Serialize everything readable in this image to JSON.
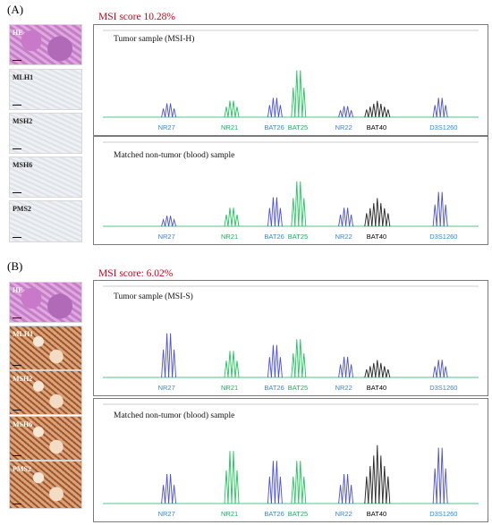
{
  "panels": [
    {
      "letter": "(A)",
      "msi_score": "MSI score 10.28%",
      "stains": [
        {
          "label": "HE",
          "style": "he"
        },
        {
          "label": "MLH1",
          "style": "neg"
        },
        {
          "label": "MSH2",
          "style": "neg"
        },
        {
          "label": "MSH6",
          "style": "neg"
        },
        {
          "label": "PMS2",
          "style": "neg"
        }
      ],
      "plots": [
        {
          "title": "Tumor sample (MSI-H)",
          "markers": [
            {
              "name": "NR27",
              "color": "#3a86c8"
            },
            {
              "name": "NR21",
              "color": "#1bb05a"
            },
            {
              "name": "BAT26",
              "color": "#3a86c8"
            },
            {
              "name": "BAT25",
              "color": "#1bb05a"
            },
            {
              "name": "NR22",
              "color": "#3a86c8"
            },
            {
              "name": "BAT40",
              "color": "#000000"
            },
            {
              "name": "D3S1260",
              "color": "#3a86c8"
            }
          ]
        },
        {
          "title": "Matched non-tumor (blood) sample",
          "markers": [
            {
              "name": "NR27",
              "color": "#3a86c8"
            },
            {
              "name": "NR21",
              "color": "#1bb05a"
            },
            {
              "name": "BAT26",
              "color": "#3a86c8"
            },
            {
              "name": "BAT25",
              "color": "#1bb05a"
            },
            {
              "name": "NR22",
              "color": "#3a86c8"
            },
            {
              "name": "BAT40",
              "color": "#000000"
            },
            {
              "name": "D3S1260",
              "color": "#3a86c8"
            }
          ]
        }
      ]
    },
    {
      "letter": "(B)",
      "msi_score": "MSI score: 6.02%",
      "stains": [
        {
          "label": "HE",
          "style": "he"
        },
        {
          "label": "MLH1",
          "style": "pos"
        },
        {
          "label": "MSH2",
          "style": "pos"
        },
        {
          "label": "MSH6",
          "style": "pos"
        },
        {
          "label": "PMS2",
          "style": "pos"
        }
      ],
      "plots": [
        {
          "title": "Tumor sample (MSI-S)",
          "markers": [
            {
              "name": "NR27",
              "color": "#3a86c8"
            },
            {
              "name": "NR21",
              "color": "#1bb05a"
            },
            {
              "name": "BAT26",
              "color": "#3a86c8"
            },
            {
              "name": "BAT25",
              "color": "#1bb05a"
            },
            {
              "name": "NR22",
              "color": "#3a86c8"
            },
            {
              "name": "BAT40",
              "color": "#000000"
            },
            {
              "name": "D3S1260",
              "color": "#3a86c8"
            }
          ]
        },
        {
          "title": "Matched non-tumor (blood) sample",
          "markers": [
            {
              "name": "NR27",
              "color": "#3a86c8"
            },
            {
              "name": "NR21",
              "color": "#1bb05a"
            },
            {
              "name": "BAT26",
              "color": "#3a86c8"
            },
            {
              "name": "BAT25",
              "color": "#1bb05a"
            },
            {
              "name": "NR22",
              "color": "#3a86c8"
            },
            {
              "name": "BAT40",
              "color": "#000000"
            },
            {
              "name": "D3S1260",
              "color": "#3a86c8"
            }
          ]
        }
      ]
    }
  ],
  "trace_colors": {
    "blue": "#4a4fe0",
    "green": "#22c55e",
    "black": "#222222"
  }
}
